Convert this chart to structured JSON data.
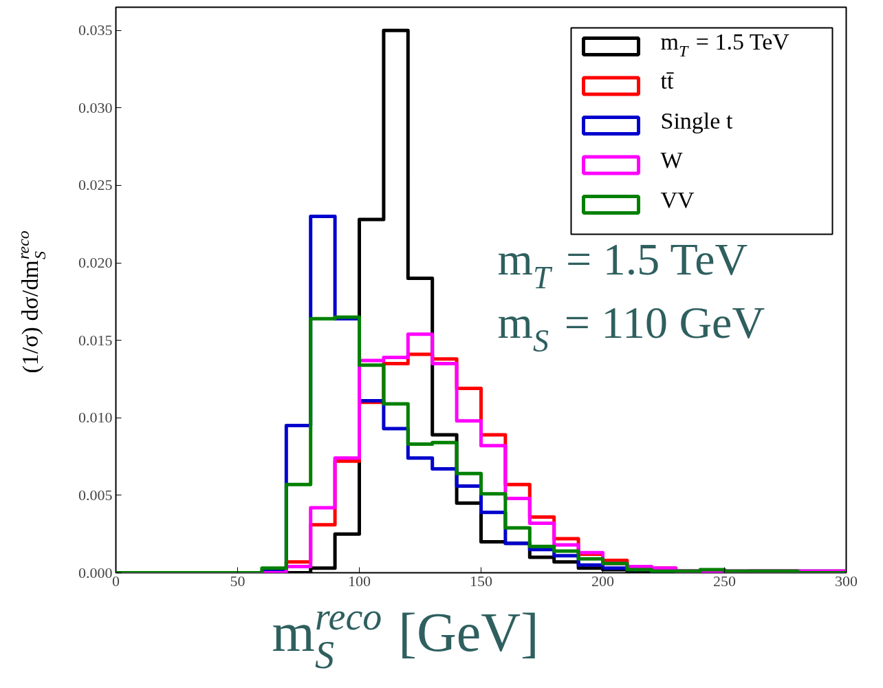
{
  "chart_data": {
    "type": "histogram",
    "xlabel": "m$_{S}$$^{reco}$ [GeV]",
    "ylabel": "(1/σ) dσ/dm$_{S}$$^{reco}$",
    "bins": [
      0,
      10,
      20,
      30,
      40,
      50,
      60,
      70,
      80,
      90,
      100,
      110,
      120,
      130,
      140,
      150,
      160,
      170,
      180,
      190,
      200,
      210,
      220,
      230,
      240,
      250,
      260,
      270,
      280,
      290,
      300
    ],
    "series": [
      {
        "name": "m$_{T}$ = 1.5 TeV",
        "color": "#000000",
        "values": [
          0,
          0,
          0,
          0,
          0,
          0,
          0,
          0,
          0.0003,
          0.0025,
          0.0228,
          0.035,
          0.019,
          0.0089,
          0.0045,
          0.002,
          0.0019,
          0.001,
          0.0007,
          0.0003,
          0.0002,
          0.0001,
          0.0001,
          0.0001,
          0.0001,
          0,
          0.0001,
          0.0001,
          0,
          0
        ]
      },
      {
        "name": "tt̄",
        "color": "#ff0000",
        "values": [
          0,
          0,
          0,
          0,
          0,
          0,
          0.0001,
          0.0007,
          0.0031,
          0.0072,
          0.011,
          0.0135,
          0.0141,
          0.0138,
          0.0119,
          0.0089,
          0.0057,
          0.0036,
          0.0022,
          0.0012,
          0.0008,
          0.0004,
          0.0003,
          0.0001,
          0.0001,
          0.0001,
          0.0001,
          0.0001,
          0.0001,
          0.0001
        ]
      },
      {
        "name": "Single t",
        "color": "#0000cc",
        "values": [
          0,
          0,
          0,
          0,
          0,
          0,
          0.0001,
          0.0095,
          0.023,
          0.0164,
          0.0111,
          0.0093,
          0.0074,
          0.0067,
          0.0056,
          0.0039,
          0.0019,
          0.0015,
          0.0011,
          0.0005,
          0.0003,
          0.0002,
          0.0001,
          0.0001,
          0.0001,
          0.0001,
          0.0001,
          0.0001,
          0.0001,
          0.0001
        ]
      },
      {
        "name": "W",
        "color": "#ff00ff",
        "values": [
          0,
          0,
          0,
          0,
          0,
          0,
          0,
          0.0004,
          0.0042,
          0.0074,
          0.0137,
          0.0139,
          0.0154,
          0.0135,
          0.0098,
          0.0082,
          0.0048,
          0.0032,
          0.0018,
          0.0013,
          0.0006,
          0.0004,
          0.0003,
          0.0001,
          0.0001,
          0.0001,
          0.0001,
          0.0001,
          0.0001,
          0.0001
        ]
      },
      {
        "name": "VV",
        "color": "#008000",
        "values": [
          0,
          0,
          0,
          0,
          0,
          0,
          0.0003,
          0.0057,
          0.0164,
          0.0165,
          0.0134,
          0.0109,
          0.0083,
          0.0084,
          0.0064,
          0.0051,
          0.0029,
          0.0017,
          0.0014,
          0.0009,
          0.0006,
          0.0002,
          0.0001,
          0.0001,
          0.0002,
          0.0001,
          0.0001,
          0.0001,
          0,
          0
        ]
      }
    ],
    "xlim": [
      0,
      300
    ],
    "ylim": [
      0,
      0.0365
    ],
    "xticks": [
      0,
      50,
      100,
      150,
      200,
      250,
      300
    ],
    "yticks": [
      {
        "value": 0,
        "label": "0.000"
      },
      {
        "value": 0.005,
        "label": "0.005"
      },
      {
        "value": 0.01,
        "label": "0.010"
      },
      {
        "value": 0.015,
        "label": "0.015"
      },
      {
        "value": 0.02,
        "label": "0.020"
      },
      {
        "value": 0.025,
        "label": "0.025"
      },
      {
        "value": 0.03,
        "label": "0.030"
      },
      {
        "value": 0.035,
        "label": "0.035"
      }
    ],
    "grid": false,
    "legend": "top right",
    "line_style": "solid",
    "marker": "none",
    "annotations": [
      "m$_{T}$ = 1.5 TeV",
      "m$_{S}$ = 110 GeV"
    ]
  }
}
